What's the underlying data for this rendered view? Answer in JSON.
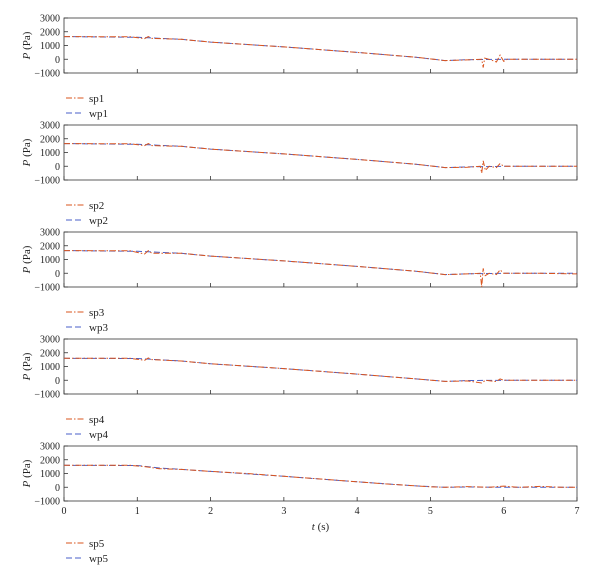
{
  "chart_data": [
    {
      "type": "line",
      "ylabel": "P (Pa)",
      "xlabel": "",
      "xlim": [
        0,
        7
      ],
      "ylim": [
        -1000,
        3000
      ],
      "yticks": [
        -1000,
        0,
        1000,
        2000,
        3000
      ],
      "xticks": [
        0,
        1,
        2,
        3,
        4,
        5,
        6,
        7
      ],
      "show_xtick_labels": false,
      "legend": "bottom-left-outside",
      "series": [
        {
          "name": "sp1",
          "color": "#d9541e",
          "style": "dash-dot",
          "x": [
            0,
            0.9,
            1.1,
            1.15,
            1.2,
            1.6,
            2,
            3,
            4,
            4.8,
            5.2,
            5.5,
            5.7,
            5.72,
            5.74,
            5.8,
            5.9,
            5.95,
            6.0,
            6.05,
            6.5,
            7
          ],
          "y": [
            1650,
            1630,
            1500,
            1650,
            1520,
            1450,
            1250,
            900,
            500,
            150,
            -100,
            -50,
            0,
            -600,
            80,
            0,
            -200,
            300,
            -150,
            0,
            0,
            0
          ]
        },
        {
          "name": "wp1",
          "color": "#4a5fc8",
          "style": "dash",
          "x": [
            0,
            1.0,
            1.6,
            2,
            3,
            4,
            4.8,
            5.2,
            5.5,
            6,
            6.5,
            7
          ],
          "y": [
            1650,
            1600,
            1450,
            1250,
            900,
            500,
            150,
            -100,
            -30,
            0,
            0,
            0
          ]
        }
      ]
    },
    {
      "type": "line",
      "ylabel": "P (Pa)",
      "xlabel": "",
      "xlim": [
        0,
        7
      ],
      "ylim": [
        -1000,
        3000
      ],
      "yticks": [
        -1000,
        0,
        1000,
        2000,
        3000
      ],
      "xticks": [
        0,
        1,
        2,
        3,
        4,
        5,
        6,
        7
      ],
      "show_xtick_labels": false,
      "legend": "bottom-left-outside",
      "series": [
        {
          "name": "sp2",
          "color": "#d9541e",
          "style": "dash-dot",
          "x": [
            0,
            0.9,
            1.1,
            1.15,
            1.2,
            1.6,
            2,
            3,
            4,
            4.8,
            5.2,
            5.5,
            5.68,
            5.7,
            5.72,
            5.75,
            5.8,
            5.9,
            5.95,
            6.0,
            6.5,
            7
          ],
          "y": [
            1650,
            1630,
            1500,
            1650,
            1500,
            1450,
            1250,
            900,
            500,
            150,
            -100,
            -80,
            0,
            -500,
            400,
            -300,
            0,
            -100,
            200,
            0,
            0,
            0
          ]
        },
        {
          "name": "wp2",
          "color": "#4a5fc8",
          "style": "dash",
          "x": [
            0,
            1.0,
            1.6,
            2,
            3,
            4,
            4.8,
            5.2,
            5.5,
            6,
            6.5,
            7
          ],
          "y": [
            1650,
            1600,
            1450,
            1250,
            900,
            500,
            150,
            -100,
            -50,
            0,
            0,
            0
          ]
        }
      ]
    },
    {
      "type": "line",
      "ylabel": "P (Pa)",
      "xlabel": "",
      "xlim": [
        0,
        7
      ],
      "ylim": [
        -1000,
        3000
      ],
      "yticks": [
        -1000,
        0,
        1000,
        2000,
        3000
      ],
      "xticks": [
        0,
        1,
        2,
        3,
        4,
        5,
        6,
        7
      ],
      "show_xtick_labels": false,
      "legend": "bottom-left-outside",
      "series": [
        {
          "name": "sp3",
          "color": "#d9541e",
          "style": "dash-dot",
          "x": [
            0,
            0.9,
            1.1,
            1.15,
            1.2,
            1.6,
            2,
            3,
            4,
            4.8,
            5.2,
            5.5,
            5.68,
            5.7,
            5.72,
            5.74,
            5.8,
            5.9,
            5.95,
            6.0,
            6.5,
            7
          ],
          "y": [
            1650,
            1630,
            1400,
            1650,
            1450,
            1450,
            1250,
            900,
            500,
            150,
            -100,
            -50,
            0,
            -1000,
            350,
            -200,
            0,
            -100,
            250,
            0,
            0,
            -50
          ]
        },
        {
          "name": "wp3",
          "color": "#4a5fc8",
          "style": "dash",
          "x": [
            0,
            1.0,
            1.6,
            2,
            3,
            4,
            4.8,
            5.2,
            5.5,
            6,
            6.5,
            7
          ],
          "y": [
            1650,
            1600,
            1450,
            1250,
            900,
            500,
            150,
            -100,
            -40,
            0,
            0,
            0
          ]
        }
      ]
    },
    {
      "type": "line",
      "ylabel": "P (Pa)",
      "xlabel": "",
      "xlim": [
        0,
        7
      ],
      "ylim": [
        -1000,
        3000
      ],
      "yticks": [
        -1000,
        0,
        1000,
        2000,
        3000
      ],
      "xticks": [
        0,
        1,
        2,
        3,
        4,
        5,
        6,
        7
      ],
      "show_xtick_labels": false,
      "legend": "bottom-left-outside",
      "series": [
        {
          "name": "sp4",
          "color": "#d9541e",
          "style": "dash-dot",
          "x": [
            0,
            0.9,
            1.1,
            1.15,
            1.2,
            1.6,
            2,
            3,
            4,
            4.8,
            5.2,
            5.5,
            5.7,
            5.75,
            5.9,
            5.95,
            6.0,
            6.5,
            7
          ],
          "y": [
            1600,
            1600,
            1450,
            1620,
            1500,
            1400,
            1200,
            850,
            450,
            100,
            -80,
            -50,
            -200,
            0,
            -100,
            100,
            0,
            0,
            0
          ]
        },
        {
          "name": "wp4",
          "color": "#4a5fc8",
          "style": "dash",
          "x": [
            0,
            1.0,
            1.6,
            2,
            3,
            4,
            4.8,
            5.2,
            5.5,
            6,
            6.5,
            7
          ],
          "y": [
            1600,
            1580,
            1400,
            1200,
            850,
            450,
            100,
            -80,
            -20,
            0,
            0,
            0
          ]
        }
      ]
    },
    {
      "type": "line",
      "ylabel": "P (Pa)",
      "xlabel": "t (s)",
      "xlim": [
        0,
        7
      ],
      "ylim": [
        -1000,
        3000
      ],
      "yticks": [
        -1000,
        0,
        1000,
        2000,
        3000
      ],
      "xticks": [
        0,
        1,
        2,
        3,
        4,
        5,
        6,
        7
      ],
      "show_xtick_labels": true,
      "legend": "bottom-left-outside",
      "series": [
        {
          "name": "sp5",
          "color": "#d9541e",
          "style": "dash-dot",
          "x": [
            0,
            0.9,
            1.1,
            1.3,
            1.6,
            2,
            2.5,
            3,
            3.5,
            4,
            4.5,
            5,
            5.2,
            5.5,
            5.8,
            6,
            6.2,
            6.5,
            6.8,
            7
          ],
          "y": [
            1600,
            1600,
            1500,
            1350,
            1300,
            1150,
            1000,
            800,
            600,
            400,
            200,
            30,
            0,
            50,
            0,
            80,
            0,
            60,
            0,
            0
          ]
        },
        {
          "name": "wp5",
          "color": "#4a5fc8",
          "style": "dash",
          "x": [
            0,
            1.0,
            1.3,
            1.6,
            2,
            3,
            4,
            4.8,
            5.2,
            5.5,
            6,
            6.5,
            7
          ],
          "y": [
            1600,
            1580,
            1400,
            1300,
            1150,
            800,
            400,
            100,
            0,
            20,
            0,
            0,
            0
          ]
        }
      ]
    }
  ]
}
